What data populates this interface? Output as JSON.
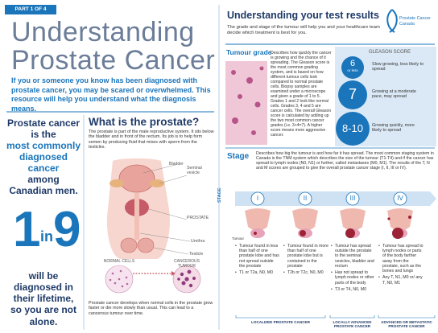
{
  "badge": "PART 1 OF 4",
  "title": [
    "Understanding",
    "Prostate Cancer"
  ],
  "intro": "If you or someone you know has been diagnosed with prostate cancer, you may be scared or overwhelmed. This resource will help you understand what the diagnosis means.",
  "stat": {
    "lead": "Prostate cancer is the",
    "highlight": "most commonly diagnosed cancer",
    "tail": "among Canadian men.",
    "number_a": "1",
    "connector": "in",
    "number_b": "9",
    "footer": "will be diagnosed in their lifetime, so you are not alone."
  },
  "prostate": {
    "heading": "What is the prostate?",
    "text": "The prostate is part of the male reproductive system. It sits below the bladder and in front of the rectum. Its job is to help form semen by producing fluid that mixes with sperm from the testicles.",
    "labels": [
      "Bladder",
      "Seminal vesicle",
      "PROSTATE",
      "Urethra",
      "Testicle"
    ],
    "cells": [
      "NORMAL CELLS",
      "CANCEROUS TUMOUR"
    ],
    "development": "Prostate cancer develops when normal cells in the prostate grow faster or die more slowly than usual. This can lead to a cancerous tumour over time."
  },
  "results": {
    "heading": "Understanding your test results",
    "subtitle": "The grade and stage of the tumour will help you and your healthcare team decide which treatment is best for you.",
    "logo": [
      "Prostate Cancer",
      "Canada"
    ]
  },
  "grade": {
    "heading": "Tumour grade",
    "text": "Describes how quickly the cancer is growing and the chance of it spreading. The Gleason score is the most common grading system, and is based on how different tumour cells look compared to normal prostate cells. Biopsy samples are examined under a microscope and given a grade of 1 to 5. Grades 1 and 2 look like normal cells. Grades 3, 4 and 5 are cancer cells. The overall Gleason score is calculated by adding up the two most common cancer grades (i.e. 3+4=7). A higher score means more aggressive cancer.",
    "gleason": {
      "heading": "GLEASON SCORE",
      "scores": [
        {
          "score": "6",
          "qualifier": "or less",
          "description": "Slow growing, less likely to spread"
        },
        {
          "score": "7",
          "description": "Growing at a moderate pace, may spread"
        },
        {
          "score": "8-10",
          "description": "Growing quickly, more likely to spread"
        }
      ]
    }
  },
  "stage": {
    "heading": "Stage",
    "text": "Describes how big the tumour is and how far it has spread. The most common staging system in Canada is the TNM system which describes the size of the tumour (T1-T4) and if the cancer has spread to lymph nodes (N0, N1) or further, called metastases (M0, M1). The results of the T, N and M scores are grouped to give the overall prostate cancer stage (I, II, III or IV).",
    "axis_label": "STAGE",
    "tumour_label": "Tumour",
    "stages": [
      {
        "numeral": "I",
        "bullets": [
          "Tumour found in less than half of one prostate lobe and has not spread outside the prostate",
          "T1 or T2a, N0, M0"
        ]
      },
      {
        "numeral": "II",
        "bullets": [
          "Tumour found in more than half of one prostate lobe but is contained in the prostate",
          "T2b or T2c, N0, M0"
        ]
      },
      {
        "numeral": "III",
        "bullets": [
          "Tumour has spread outside the prostate to the seminal vesicles, bladder and rectum",
          "Has not spread to lymph nodes or other parts of the body",
          "T3 or T4, N0, M0"
        ]
      },
      {
        "numeral": "IV",
        "bullets": [
          "Tumour has spread to lymph nodes or parts of the body farther away from the prostate, such as the bones and lungs",
          "Any T, N1, M0 or/ any T, N0, M1"
        ]
      }
    ],
    "groups": [
      "LOCALIZED PROSTATE CANCER",
      "LOCALLY ADVANCED PROSTATE CANCER",
      "ADVANCED OR METASTATIC PROSTATE CANCER"
    ]
  }
}
